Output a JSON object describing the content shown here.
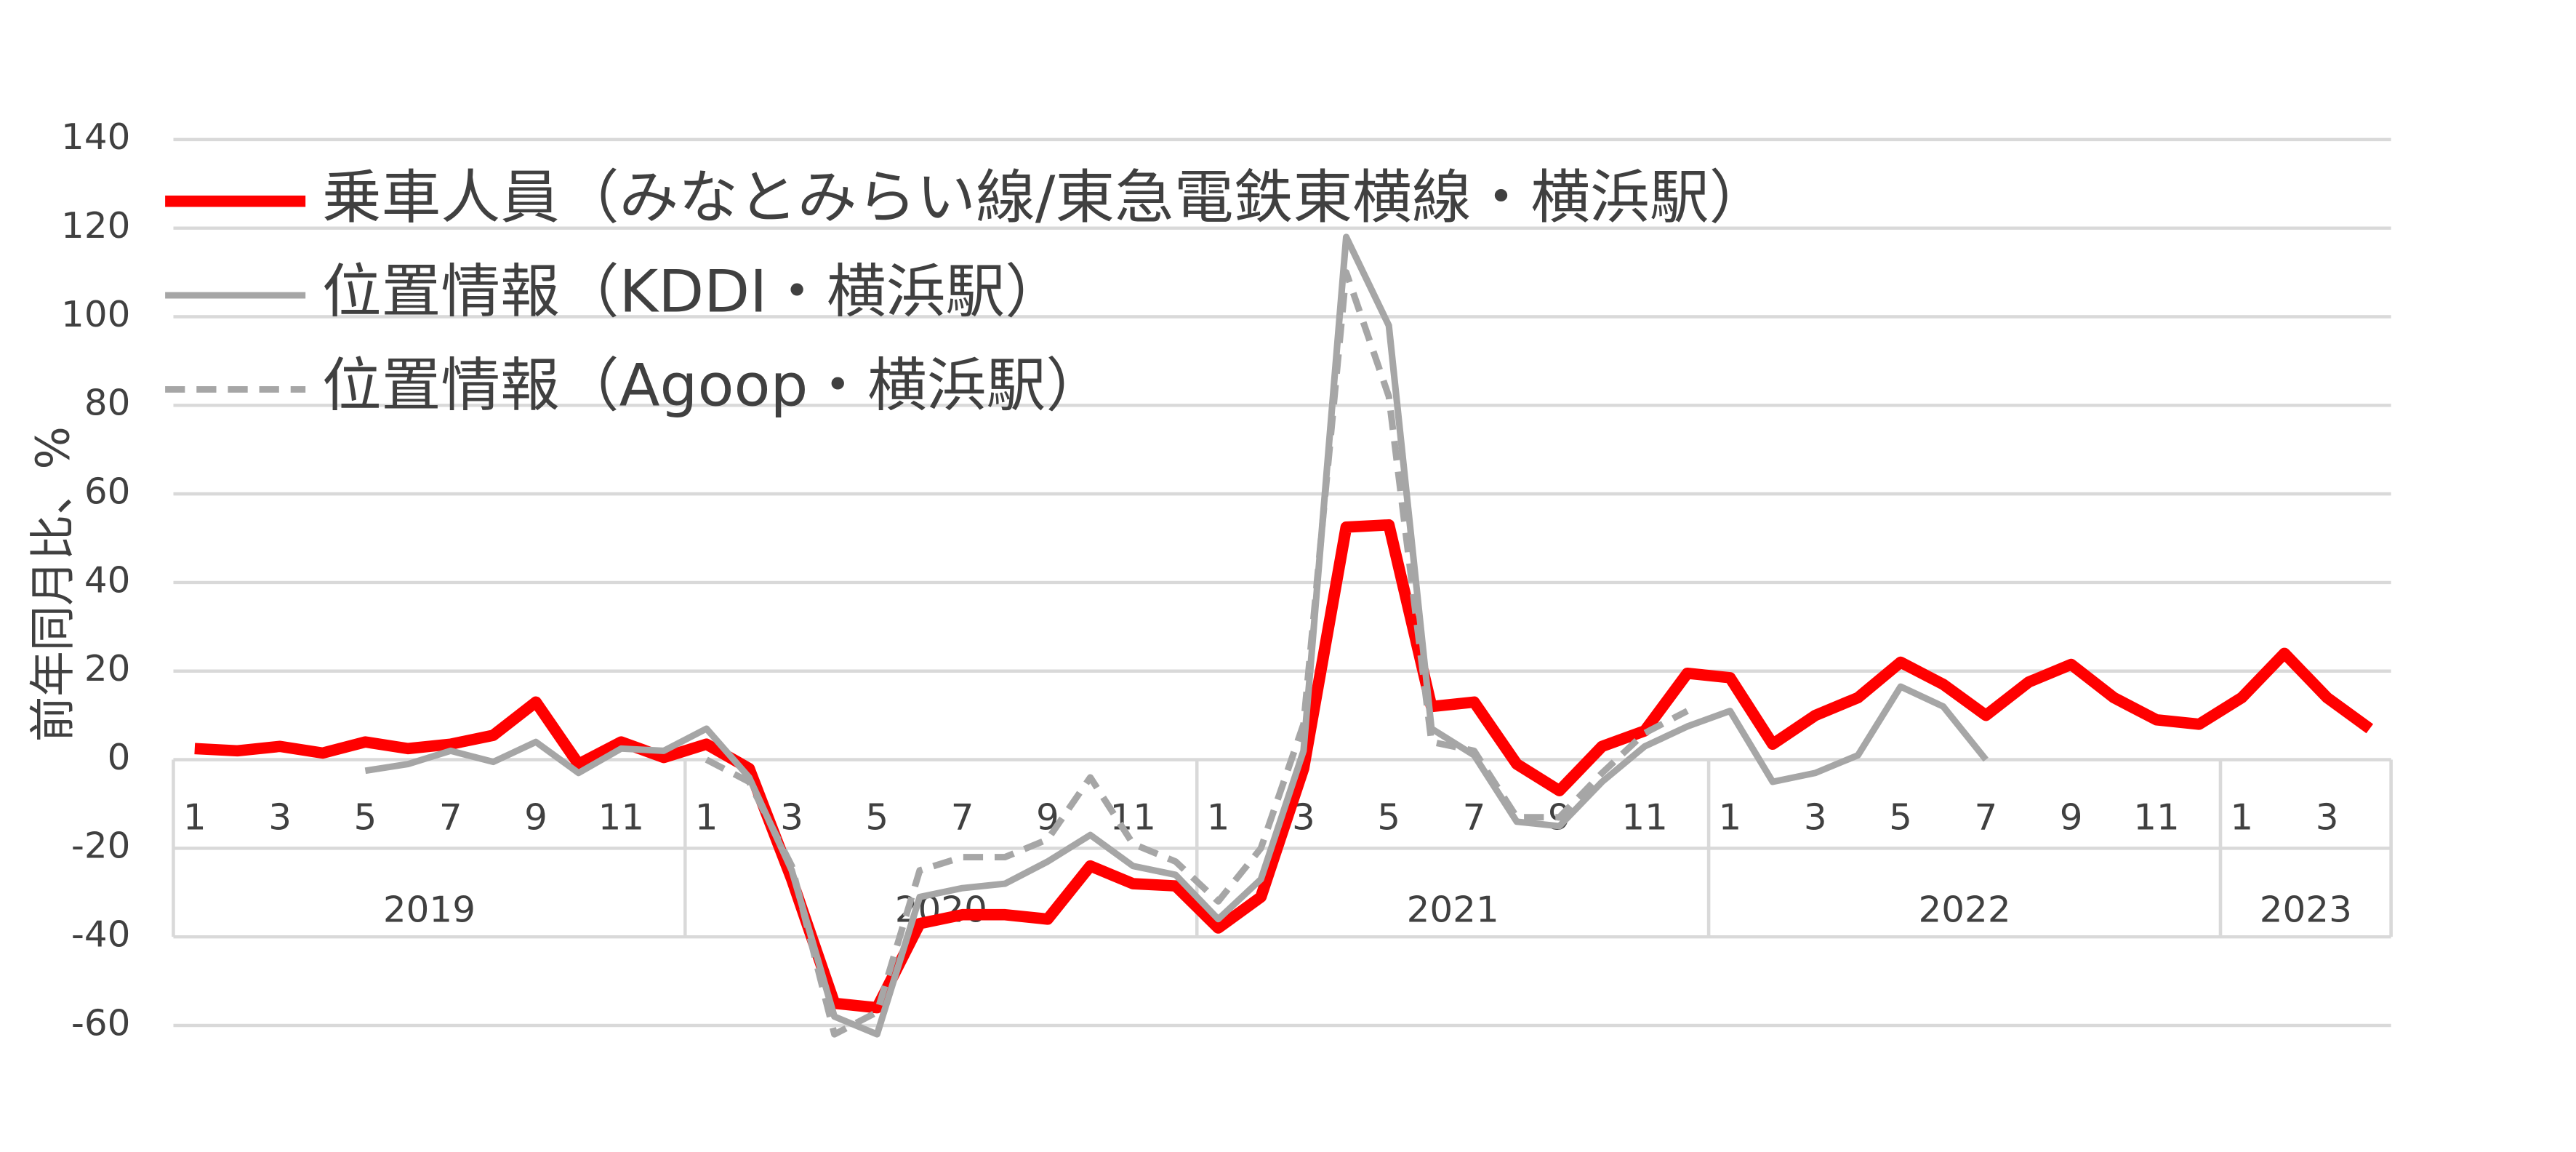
{
  "chart_data": {
    "type": "line",
    "y_label": "前年同月比、%",
    "categories": [
      "1",
      null,
      "3",
      null,
      "5",
      null,
      "7",
      null,
      "9",
      null,
      "11",
      null,
      "1",
      null,
      "3",
      null,
      "5",
      null,
      "7",
      null,
      "9",
      null,
      "11",
      null,
      "1",
      null,
      "3",
      null,
      "5",
      null,
      "7",
      null,
      "9",
      null,
      "11",
      null,
      "1",
      null,
      "3",
      null,
      "5",
      null,
      "7",
      null,
      "9",
      null,
      "11",
      null,
      "1",
      null,
      "3",
      null
    ],
    "groups": [
      "2019",
      "2020",
      "2021",
      "2022",
      "2023"
    ],
    "series": [
      {
        "name": "乗車人員（みなとみらい線/東急電鉄東横線・横浜駅）",
        "color": "#ff0000",
        "dash": false,
        "values": [
          2.5,
          2,
          3,
          1.5,
          4,
          2.5,
          3.5,
          5.5,
          13,
          -1,
          4,
          0.5,
          3.5,
          -2,
          -27,
          -55,
          -56,
          -37,
          -35,
          -35,
          -36,
          -24,
          -28,
          -28.5,
          -38,
          -31,
          -2,
          52.5,
          53,
          12,
          13,
          -1,
          -7,
          3,
          6.5,
          19.5,
          18.5,
          3.5,
          10,
          14,
          22,
          17,
          10,
          17.5,
          21.5,
          14,
          9,
          8,
          14,
          24,
          14,
          7
        ]
      },
      {
        "name": "位置情報（KDDI・横浜駅）",
        "color": "#a6a6a6",
        "dash": false,
        "values": [
          null,
          null,
          null,
          null,
          -2.5,
          -1,
          2,
          -0.5,
          4,
          -3,
          2.5,
          2,
          7,
          -4,
          -25,
          -58,
          -62,
          -31,
          -29,
          -28,
          -23,
          -17,
          -24,
          -26,
          -36,
          -27,
          2,
          118,
          98,
          7,
          1,
          -14,
          -15,
          -5,
          3,
          7.5,
          11,
          -5,
          -3,
          1,
          16.5,
          12,
          0,
          null,
          null,
          null,
          null,
          null,
          null,
          null,
          null,
          null
        ]
      },
      {
        "name": "位置情報（Agoop・横浜駅）",
        "color": "#a6a6a6",
        "dash": true,
        "values": [
          null,
          null,
          null,
          null,
          null,
          null,
          null,
          null,
          null,
          null,
          null,
          null,
          0,
          -5,
          -24,
          -62,
          -57,
          -25,
          -22,
          -22,
          -18,
          -4,
          -19,
          -23,
          -32,
          -20,
          8,
          110,
          82,
          4,
          2,
          -13,
          -13,
          -3,
          6,
          11,
          null,
          null,
          null,
          null,
          null,
          null,
          null,
          null,
          null,
          null,
          null,
          null,
          null,
          null,
          null,
          null
        ]
      }
    ],
    "ylim": [
      -60,
      140
    ],
    "yticks": [
      -60,
      -40,
      -20,
      0,
      20,
      40,
      60,
      80,
      100,
      120,
      140
    ],
    "grid": true,
    "legend": "top-left"
  }
}
